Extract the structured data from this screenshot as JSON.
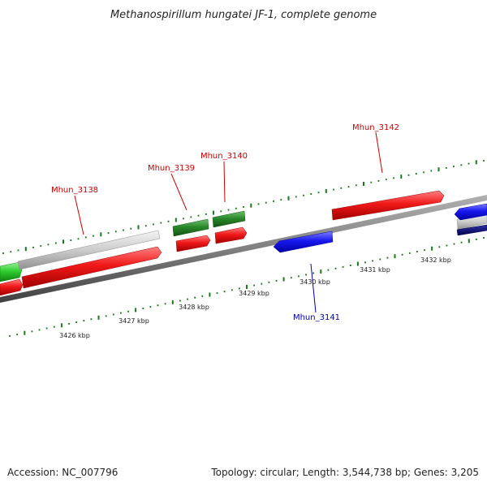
{
  "header": {
    "title": "Methanospirillum hungatei JF-1, complete genome"
  },
  "footer": {
    "accession": "Accession: NC_007796",
    "summary": "Topology: circular; Length: 3,544,738 bp; Genes: 3,205"
  },
  "colors": {
    "label_red": "#cc0000",
    "label_blue": "#0000aa",
    "tick_green": "#1a7a1a",
    "gene_red": "#e01010",
    "gene_blue": "#1515e0",
    "gene_green": "#2a8a2a",
    "gene_gray": "#c8c8c8"
  },
  "scale": {
    "labels": [
      "3426 kbp",
      "3427 kbp",
      "3428 kbp",
      "3429 kbp",
      "3430 kbp",
      "3431 kbp",
      "3432 kbp"
    ]
  },
  "genes": [
    {
      "id": "Mhun_3138",
      "strand": "plus",
      "color": "red"
    },
    {
      "id": "Mhun_3139",
      "strand": "plus",
      "color": "green"
    },
    {
      "id": "Mhun_3140",
      "strand": "plus",
      "color": "green"
    },
    {
      "id": "Mhun_3141",
      "strand": "minus",
      "color": "blue"
    },
    {
      "id": "Mhun_3142",
      "strand": "plus",
      "color": "red"
    }
  ]
}
